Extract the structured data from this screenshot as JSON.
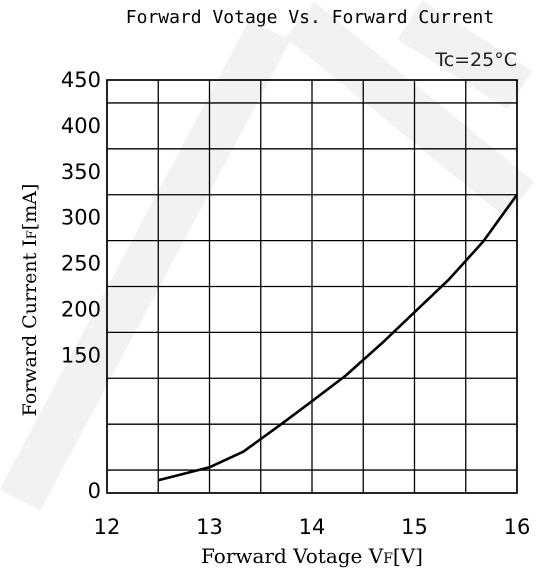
{
  "chart_data": {
    "type": "line",
    "title": "Forward Votage Vs. Forward Current",
    "annotation": "Tc=25°C",
    "xlabel_main": "Forward Votage V",
    "xlabel_sub": "F",
    "xlabel_unit": "[V]",
    "ylabel_main": "Forward Current I",
    "ylabel_sub": "F",
    "ylabel_unit": "[mA]",
    "xlim": [
      12,
      16
    ],
    "ylim": [
      0,
      450
    ],
    "x_ticks": [
      12,
      13,
      14,
      15,
      16
    ],
    "y_ticks": [
      0,
      150,
      200,
      250,
      300,
      350,
      400,
      450
    ],
    "x_gridlines": [
      12,
      12.5,
      13,
      13.5,
      14,
      14.5,
      15,
      15.5,
      16
    ],
    "y_gridlines": [
      0,
      25,
      75,
      125,
      175,
      225,
      275,
      325,
      375,
      425,
      450
    ],
    "grid": true,
    "watermark_color": "#f2f2f2",
    "line_color": "#000000",
    "series": [
      {
        "x": [
          12.5,
          13.0,
          13.33,
          13.7,
          14.0,
          14.33,
          14.7,
          15.0,
          15.33,
          15.67,
          16.0
        ],
        "y": [
          14,
          28,
          45,
          75,
          100,
          128,
          165,
          197,
          232,
          274,
          325
        ]
      }
    ]
  }
}
